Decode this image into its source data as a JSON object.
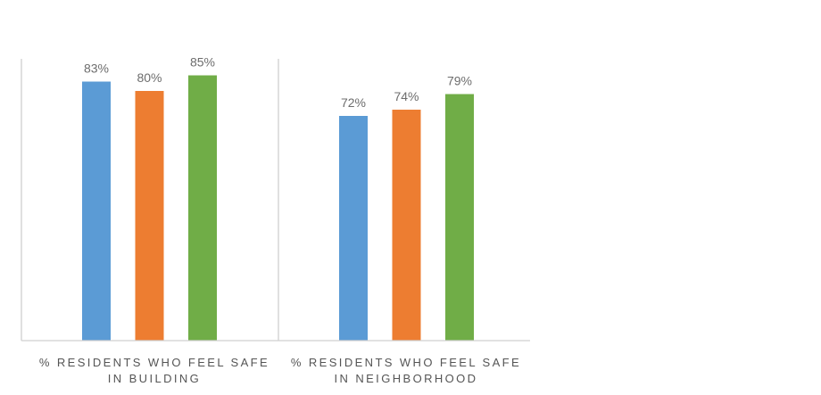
{
  "chart_data": {
    "type": "bar",
    "title": "",
    "xlabel": "",
    "ylabel": "",
    "ylim": [
      0,
      100
    ],
    "grid": false,
    "legend": "none",
    "categories": [
      [
        "% RESIDENTS WHO FEEL SAFE",
        "IN BUILDING"
      ],
      [
        "% RESIDENTS WHO FEEL SAFE",
        "IN NEIGHBORHOOD"
      ]
    ],
    "series": [
      {
        "color": "#5b9bd5",
        "values": [
          83,
          72
        ],
        "labels": [
          "83%",
          "72%"
        ]
      },
      {
        "color": "#ed7d31",
        "values": [
          80,
          74
        ],
        "labels": [
          "80%",
          "74%"
        ]
      },
      {
        "color": "#70ad47",
        "values": [
          85,
          79
        ],
        "labels": [
          "85%",
          "79%"
        ]
      }
    ]
  }
}
